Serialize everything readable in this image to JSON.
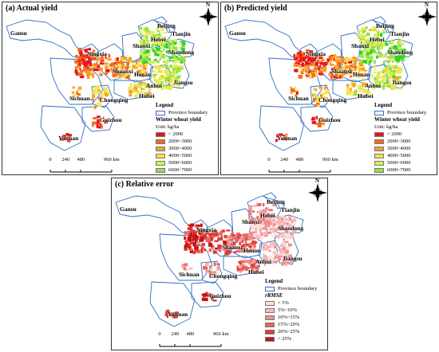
{
  "panels": [
    {
      "id": "a",
      "title": "(a) Actual yield",
      "legend_title": "Legend",
      "boundary_label": "Province boundary",
      "var_title": "Winter wheat yield",
      "unit": "Unit: kg/ha",
      "classes": [
        {
          "label": "< 2000",
          "color": "#e8141c"
        },
        {
          "label": "2000~3000",
          "color": "#f26a1b"
        },
        {
          "label": "3000~4000",
          "color": "#f7a02a"
        },
        {
          "label": "4000~5000",
          "color": "#fbe04a"
        },
        {
          "label": "5000~6000",
          "color": "#d8ef52"
        },
        {
          "label": "6000~7000",
          "color": "#8fe04a"
        },
        {
          "label": "> 7000",
          "color": "#2fcf2f"
        }
      ]
    },
    {
      "id": "b",
      "title": "(b) Predicted yield",
      "legend_title": "Legend",
      "boundary_label": "Province boundary",
      "var_title": "Winter wheat yield",
      "unit": "Unit: kg/ha",
      "classes": [
        {
          "label": "< 2000",
          "color": "#e8141c"
        },
        {
          "label": "2000~3000",
          "color": "#f26a1b"
        },
        {
          "label": "3000~4000",
          "color": "#f7a02a"
        },
        {
          "label": "4000~5000",
          "color": "#fbe04a"
        },
        {
          "label": "5000~6000",
          "color": "#d8ef52"
        },
        {
          "label": "6000~7000",
          "color": "#8fe04a"
        },
        {
          "label": "> 7000",
          "color": "#2fcf2f"
        }
      ]
    },
    {
      "id": "c",
      "title": "(c) Relative error",
      "legend_title": "Legend",
      "boundary_label": "Province boundary",
      "var_title": "rRMSE",
      "unit": "",
      "classes": [
        {
          "label": "< 5%",
          "color": "#fbe0e0"
        },
        {
          "label": "5%~10%",
          "color": "#f6b8b8"
        },
        {
          "label": "10%~15%",
          "color": "#f08f8c"
        },
        {
          "label": "15%~20%",
          "color": "#e96560"
        },
        {
          "label": "20%~25%",
          "color": "#e03c35"
        },
        {
          "label": "> 25%",
          "color": "#c9110f"
        }
      ]
    }
  ],
  "provinces": [
    "Gansu",
    "Beijing",
    "Tianjin",
    "Hebei",
    "Shanxi",
    "Shandong",
    "Ningxia",
    "Shaanxi",
    "Henan",
    "Jiangsu",
    "Anhui",
    "Hubei",
    "Sichuan",
    "Chongqing",
    "Guizhou",
    "Yunnan"
  ],
  "scale": {
    "ticks": [
      "0",
      "240",
      "480",
      "960 km"
    ]
  },
  "compass_label": "N",
  "colors": {
    "boundary": "#2f6fc4"
  }
}
